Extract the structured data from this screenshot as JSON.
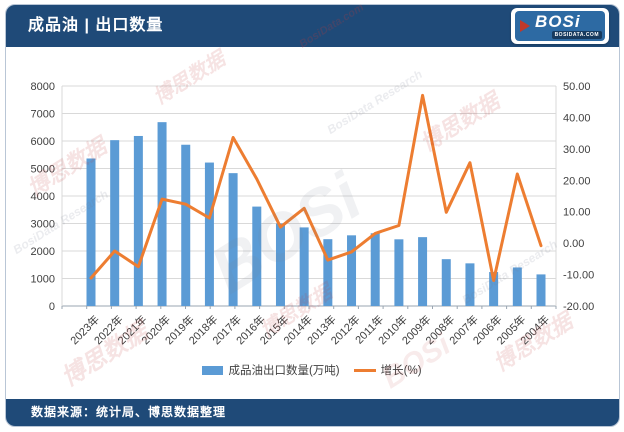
{
  "header": {
    "title": "成品油 | 出口数量"
  },
  "logo": {
    "name": "BOSi",
    "domain": "BOSIDATA.COM"
  },
  "chart_data": {
    "type": "combo-bar-line",
    "categories": [
      "2023年",
      "2022年",
      "2021年",
      "2020年",
      "2019年",
      "2018年",
      "2017年",
      "2016年",
      "2015年",
      "2014年",
      "2013年",
      "2012年",
      "2011年",
      "2010年",
      "2009年",
      "2008年",
      "2007年",
      "2006年",
      "2005年",
      "2004年"
    ],
    "series": [
      {
        "name": "成品油出口数量(万吨)",
        "type": "bar",
        "axis": "left",
        "color": "#5b9bd5",
        "values": [
          5364,
          6031,
          6183,
          6685,
          5864,
          5216,
          4831,
          3615,
          3003,
          2858,
          2430,
          2570,
          2645,
          2425,
          2504,
          1703,
          1551,
          1235,
          1402,
          1149
        ]
      },
      {
        "name": "增长(%)",
        "type": "line",
        "axis": "right",
        "color": "#ed7d31",
        "values": [
          -11.1,
          -2.5,
          -7.5,
          14.0,
          12.4,
          8.0,
          33.6,
          20.4,
          5.1,
          11.1,
          -5.4,
          -2.8,
          3.1,
          5.6,
          47.0,
          9.8,
          25.6,
          -11.9,
          22.0,
          -0.8
        ]
      }
    ],
    "axis_left": {
      "min": 0,
      "max": 8000,
      "step": 1000,
      "ticks": [
        "0",
        "1000",
        "2000",
        "3000",
        "4000",
        "5000",
        "6000",
        "7000",
        "8000"
      ]
    },
    "axis_right": {
      "min": -20,
      "max": 50,
      "step": 10,
      "ticks": [
        "-20.00",
        "-10.00",
        "0.00",
        "10.00",
        "20.00",
        "30.00",
        "40.00",
        "50.00"
      ]
    },
    "grid": true,
    "legend_position": "bottom"
  },
  "legend": {
    "bar_label": "成品油出口数量(万吨)",
    "line_label": "增长(%)"
  },
  "footer": {
    "source": "数据来源：统计局、博思数据整理"
  },
  "watermarks": {
    "texts": [
      "博思数据",
      "BosiData Research",
      "BOSi",
      "BosiData.com"
    ]
  },
  "colors": {
    "header_bar": "#1f4a78",
    "bar": "#5b9bd5",
    "line": "#ed7d31",
    "grid": "#d9d9d9"
  }
}
